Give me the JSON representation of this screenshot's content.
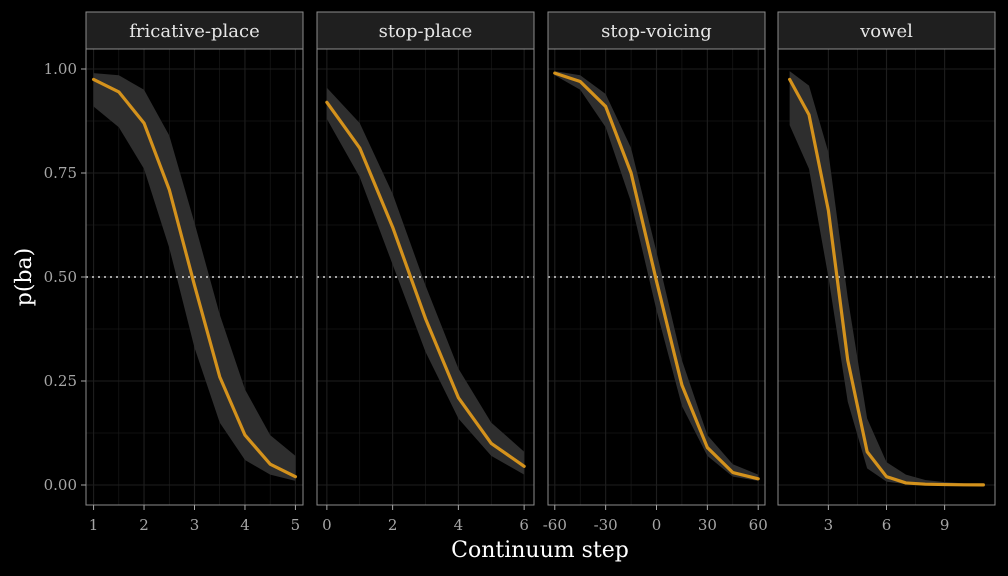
{
  "chart_data": {
    "type": "line",
    "xlabel": "Continuum step",
    "ylabel": "p(ba)",
    "ylim": [
      0,
      1
    ],
    "yticks": [
      0,
      0.25,
      0.5,
      0.75,
      1
    ],
    "ytick_labels": [
      "0.00",
      "0.25",
      "0.50",
      "0.75",
      "1.00"
    ],
    "reference_line": {
      "y": 0.5,
      "style": "dotted"
    },
    "colors": {
      "background": "#000000",
      "panel": "#000000",
      "grid": "#1e1e1e",
      "strip": "#1f1f1f",
      "strip_border": "#8c8c8c",
      "line": "#d4921c",
      "ribbon": "#2e2e2e",
      "reference": "#d9d9d9"
    },
    "grid": true,
    "legend": "none",
    "panels": [
      {
        "name": "fricative-place",
        "xlim": [
          0.85,
          5.15
        ],
        "xticks": [
          1,
          2,
          3,
          4,
          5
        ],
        "xtick_labels": [
          "1",
          "2",
          "3",
          "4",
          "5"
        ],
        "x": [
          1,
          1.5,
          2,
          2.5,
          3,
          3.5,
          4,
          4.5,
          5
        ],
        "y": [
          0.975,
          0.945,
          0.87,
          0.71,
          0.48,
          0.26,
          0.12,
          0.05,
          0.02
        ],
        "lower": [
          0.91,
          0.86,
          0.76,
          0.57,
          0.33,
          0.15,
          0.06,
          0.025,
          0.01
        ],
        "upper": [
          0.99,
          0.985,
          0.95,
          0.84,
          0.63,
          0.41,
          0.23,
          0.12,
          0.07
        ]
      },
      {
        "name": "stop-place",
        "xlim": [
          -0.3,
          6.3
        ],
        "xticks": [
          0,
          2,
          4,
          6
        ],
        "xtick_labels": [
          "0",
          "2",
          "4",
          "6"
        ],
        "x": [
          0,
          1,
          2,
          3,
          4,
          5,
          6
        ],
        "y": [
          0.92,
          0.81,
          0.62,
          0.4,
          0.21,
          0.1,
          0.045
        ],
        "lower": [
          0.88,
          0.74,
          0.53,
          0.32,
          0.16,
          0.07,
          0.025
        ],
        "upper": [
          0.955,
          0.87,
          0.7,
          0.48,
          0.28,
          0.15,
          0.08
        ]
      },
      {
        "name": "stop-voicing",
        "xlim": [
          -64,
          64
        ],
        "xticks": [
          -60,
          -30,
          0,
          30,
          60
        ],
        "xtick_labels": [
          "-60",
          "-30",
          "0",
          "30",
          "60"
        ],
        "x": [
          -60,
          -45,
          -30,
          -15,
          0,
          15,
          30,
          45,
          60
        ],
        "y": [
          0.99,
          0.97,
          0.91,
          0.75,
          0.49,
          0.24,
          0.09,
          0.03,
          0.015
        ],
        "lower": [
          0.985,
          0.95,
          0.86,
          0.68,
          0.42,
          0.19,
          0.07,
          0.02,
          0.01
        ],
        "upper": [
          0.995,
          0.985,
          0.94,
          0.81,
          0.56,
          0.3,
          0.12,
          0.05,
          0.025
        ]
      },
      {
        "name": "vowel",
        "xlim": [
          0.4,
          11.6
        ],
        "xticks": [
          3,
          6,
          9
        ],
        "xtick_labels": [
          "3",
          "6",
          "9"
        ],
        "x": [
          1,
          2,
          3,
          4,
          5,
          6,
          7,
          8,
          9,
          10,
          11
        ],
        "y": [
          0.975,
          0.89,
          0.66,
          0.3,
          0.08,
          0.02,
          0.005,
          0.002,
          0.001,
          0.0005,
          0.0003
        ],
        "lower": [
          0.865,
          0.76,
          0.5,
          0.2,
          0.04,
          0.008,
          0.002,
          0.0005,
          0.0002,
          0.0001,
          0.0001
        ],
        "upper": [
          0.995,
          0.96,
          0.8,
          0.45,
          0.16,
          0.055,
          0.025,
          0.012,
          0.007,
          0.004,
          0.003
        ]
      }
    ]
  }
}
